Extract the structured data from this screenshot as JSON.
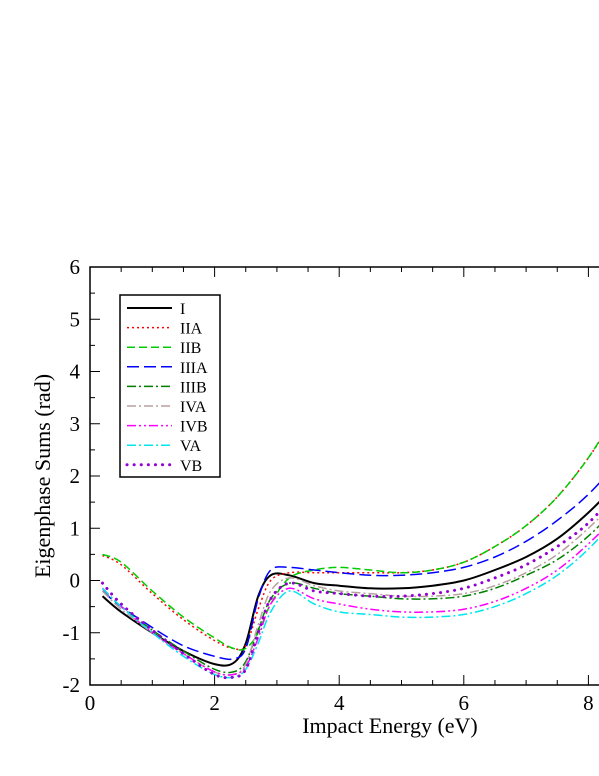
{
  "chart_data": {
    "type": "line",
    "title": "",
    "xlabel": "Impact Energy (eV)",
    "ylabel": "Eigenphase Sums (rad)",
    "xlim": [
      0,
      8.5
    ],
    "ylim": [
      -2,
      6
    ],
    "xticks": [
      "0",
      "2",
      "4",
      "6",
      "8"
    ],
    "yticks": [
      "-2",
      "-1",
      "0",
      "1",
      "2",
      "3",
      "4",
      "5",
      "6"
    ],
    "grid": false,
    "legend_position": "top-left",
    "x": [
      0.2,
      0.5,
      1.0,
      1.5,
      2.0,
      2.3,
      2.5,
      2.7,
      2.9,
      3.2,
      3.6,
      4.0,
      4.5,
      5.0,
      5.5,
      6.0,
      6.5,
      7.0,
      7.5,
      8.0,
      8.5
    ],
    "series": [
      {
        "name": "I",
        "color": "#000000",
        "dash": "solid",
        "width": 2,
        "values": [
          -0.3,
          -0.6,
          -1.0,
          -1.35,
          -1.6,
          -1.58,
          -1.2,
          -0.3,
          0.1,
          0.1,
          -0.05,
          -0.1,
          -0.15,
          -0.15,
          -0.1,
          0.0,
          0.2,
          0.45,
          0.8,
          1.3,
          1.9
        ]
      },
      {
        "name": "IIA",
        "color": "#ff0000",
        "dash": "dot",
        "width": 1.5,
        "values": [
          0.48,
          0.3,
          -0.25,
          -0.75,
          -1.15,
          -1.3,
          -1.25,
          -0.55,
          0.0,
          0.15,
          0.15,
          0.15,
          0.15,
          0.15,
          0.2,
          0.35,
          0.65,
          1.05,
          1.6,
          2.35,
          3.25
        ]
      },
      {
        "name": "IIB",
        "color": "#00cc00",
        "dash": "dash",
        "width": 1.5,
        "values": [
          0.5,
          0.35,
          -0.2,
          -0.7,
          -1.1,
          -1.3,
          -1.3,
          -1.0,
          -0.45,
          0.05,
          0.2,
          0.25,
          0.2,
          0.15,
          0.2,
          0.35,
          0.65,
          1.05,
          1.6,
          2.35,
          3.3
        ]
      },
      {
        "name": "IIIA",
        "color": "#0000ff",
        "dash": "longdash",
        "width": 1.5,
        "values": [
          -0.2,
          -0.5,
          -0.9,
          -1.25,
          -1.45,
          -1.5,
          -1.3,
          -0.35,
          0.2,
          0.25,
          0.2,
          0.15,
          0.1,
          0.1,
          0.15,
          0.25,
          0.45,
          0.75,
          1.15,
          1.65,
          2.3
        ]
      },
      {
        "name": "IIIB",
        "color": "#008000",
        "dash": "dashdot",
        "width": 1.5,
        "values": [
          -0.15,
          -0.5,
          -0.95,
          -1.35,
          -1.7,
          -1.75,
          -1.55,
          -0.95,
          -0.35,
          -0.05,
          -0.15,
          -0.25,
          -0.3,
          -0.35,
          -0.35,
          -0.3,
          -0.15,
          0.1,
          0.4,
          0.85,
          1.45
        ]
      },
      {
        "name": "IVA",
        "color": "#b8a0a0",
        "dash": "dashdot",
        "width": 1.5,
        "values": [
          -0.2,
          -0.55,
          -1.0,
          -1.4,
          -1.75,
          -1.8,
          -1.6,
          -0.85,
          -0.2,
          0.05,
          -0.1,
          -0.2,
          -0.25,
          -0.3,
          -0.3,
          -0.25,
          -0.1,
          0.15,
          0.5,
          1.0,
          1.6
        ]
      },
      {
        "name": "IVB",
        "color": "#ff00ff",
        "dash": "dashdotdot",
        "width": 1.5,
        "values": [
          -0.15,
          -0.5,
          -1.0,
          -1.4,
          -1.75,
          -1.8,
          -1.65,
          -1.1,
          -0.45,
          -0.15,
          -0.35,
          -0.45,
          -0.55,
          -0.6,
          -0.6,
          -0.55,
          -0.4,
          -0.15,
          0.2,
          0.7,
          1.3
        ]
      },
      {
        "name": "VA",
        "color": "#00e5ee",
        "dash": "dashdot",
        "width": 1.5,
        "values": [
          -0.15,
          -0.5,
          -1.0,
          -1.45,
          -1.8,
          -1.85,
          -1.7,
          -1.2,
          -0.6,
          -0.2,
          -0.45,
          -0.6,
          -0.65,
          -0.7,
          -0.7,
          -0.65,
          -0.5,
          -0.25,
          0.1,
          0.6,
          1.25
        ]
      },
      {
        "name": "VB",
        "color": "#9400d3",
        "dash": "dotted-thick",
        "width": 3,
        "values": [
          -0.05,
          -0.45,
          -0.95,
          -1.4,
          -1.8,
          -1.85,
          -1.7,
          -1.0,
          -0.35,
          -0.05,
          -0.2,
          -0.25,
          -0.3,
          -0.3,
          -0.25,
          -0.15,
          0.05,
          0.3,
          0.65,
          1.1,
          1.75
        ]
      }
    ]
  }
}
